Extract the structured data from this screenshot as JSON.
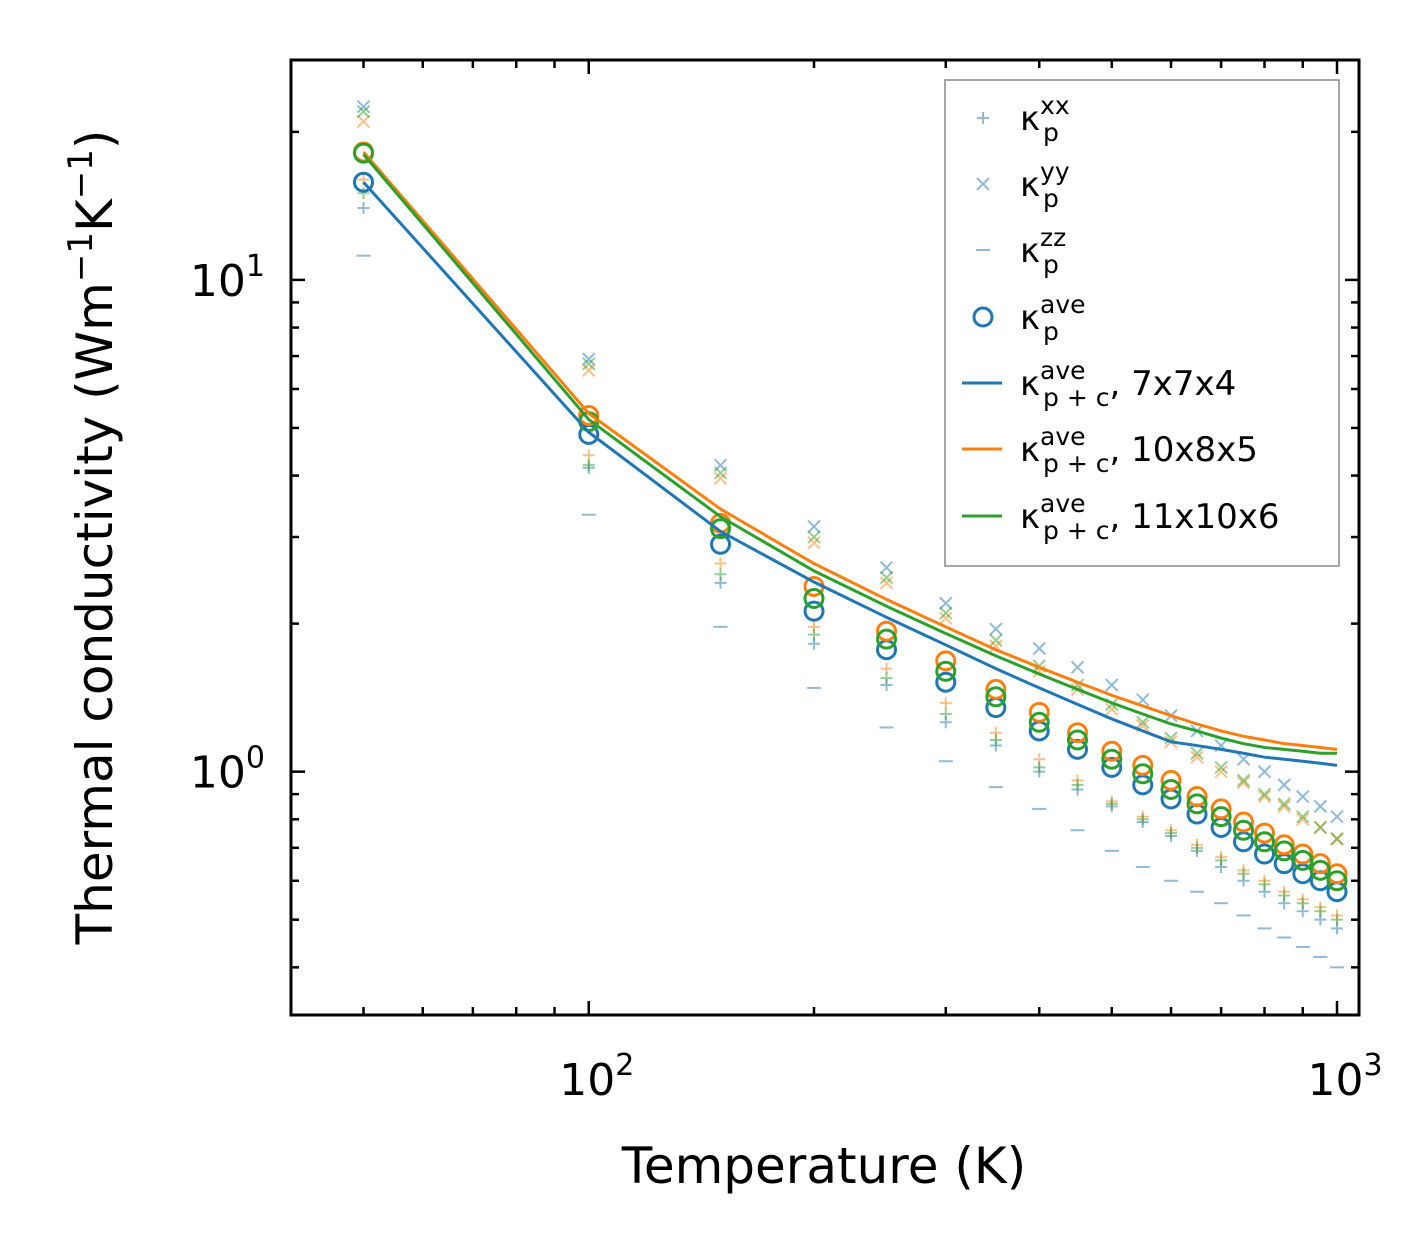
{
  "chart_data": {
    "type": "scatter+line",
    "scale": {
      "x": "log",
      "y": "log"
    },
    "xlabel": "Temperature (K)",
    "ylabel": {
      "prefix": "Thermal conductivity (Wm",
      "sup1": "−1",
      "mid": "K",
      "sup2": "−1",
      "suffix": ")"
    },
    "xlim": [
      40,
      1070
    ],
    "ylim": [
      0.32,
      28
    ],
    "x_ticks": [
      {
        "value": 100,
        "base": "10",
        "exp": "2"
      },
      {
        "value": 1000,
        "base": "10",
        "exp": "3"
      }
    ],
    "y_ticks": [
      {
        "value": 1,
        "base": "10",
        "exp": "0"
      },
      {
        "value": 10,
        "base": "10",
        "exp": "1"
      }
    ],
    "x": [
      50,
      100,
      150,
      200,
      250,
      300,
      350,
      400,
      450,
      500,
      550,
      600,
      650,
      700,
      750,
      800,
      850,
      900,
      950,
      1000
    ],
    "scatter_series": [
      {
        "name": "kappa_p_xx",
        "marker": "plus",
        "groups": [
          {
            "color": "#1f77b4",
            "values": [
              14.0,
              4.15,
              2.42,
              1.82,
              1.5,
              1.26,
              1.13,
              1.0,
              0.92,
              0.85,
              0.79,
              0.74,
              0.69,
              0.64,
              0.6,
              0.57,
              0.54,
              0.52,
              0.5,
              0.48
            ]
          },
          {
            "color": "#ff7f0e",
            "values": [
              16.0,
              4.4,
              2.65,
              1.97,
              1.62,
              1.38,
              1.2,
              1.06,
              0.96,
              0.87,
              0.81,
              0.76,
              0.71,
              0.67,
              0.63,
              0.6,
              0.57,
              0.55,
              0.53,
              0.51
            ]
          },
          {
            "color": "#2ca02c",
            "values": [
              15.0,
              4.2,
              2.52,
              1.9,
              1.55,
              1.31,
              1.16,
              1.02,
              0.94,
              0.86,
              0.8,
              0.75,
              0.7,
              0.66,
              0.62,
              0.59,
              0.56,
              0.54,
              0.52,
              0.5
            ]
          }
        ]
      },
      {
        "name": "kappa_p_yy",
        "marker": "cross",
        "groups": [
          {
            "color": "#1f77b4",
            "values": [
              22.5,
              6.9,
              4.2,
              3.15,
              2.6,
              2.2,
              1.95,
              1.78,
              1.63,
              1.5,
              1.4,
              1.3,
              1.21,
              1.13,
              1.06,
              1.0,
              0.94,
              0.89,
              0.85,
              0.81
            ]
          },
          {
            "color": "#ff7f0e",
            "values": [
              21.0,
              6.55,
              3.95,
              2.92,
              2.42,
              2.05,
              1.8,
              1.6,
              1.47,
              1.34,
              1.24,
              1.15,
              1.07,
              1.0,
              0.95,
              0.89,
              0.85,
              0.8,
              0.77,
              0.73
            ]
          },
          {
            "color": "#2ca02c",
            "values": [
              22.0,
              6.75,
              4.05,
              3.0,
              2.48,
              2.1,
              1.85,
              1.64,
              1.5,
              1.37,
              1.26,
              1.17,
              1.09,
              1.02,
              0.96,
              0.9,
              0.86,
              0.81,
              0.77,
              0.73
            ]
          }
        ]
      },
      {
        "name": "kappa_p_zz",
        "marker": "dash",
        "groups": [
          {
            "color": "#1f77b4",
            "values": [
              11.2,
              3.33,
              1.97,
              1.48,
              1.23,
              1.05,
              0.93,
              0.84,
              0.76,
              0.69,
              0.64,
              0.6,
              0.57,
              0.54,
              0.51,
              0.48,
              0.46,
              0.44,
              0.42,
              0.4
            ]
          }
        ]
      },
      {
        "name": "kappa_p_ave",
        "marker": "circle",
        "groups": [
          {
            "color": "#1f77b4",
            "values": [
              15.8,
              4.85,
              2.9,
              2.12,
              1.77,
              1.52,
              1.35,
              1.21,
              1.11,
              1.02,
              0.94,
              0.88,
              0.82,
              0.77,
              0.72,
              0.68,
              0.65,
              0.62,
              0.6,
              0.57
            ]
          },
          {
            "color": "#ff7f0e",
            "values": [
              18.2,
              5.3,
              3.2,
              2.38,
              1.93,
              1.68,
              1.47,
              1.32,
              1.2,
              1.1,
              1.03,
              0.96,
              0.89,
              0.84,
              0.79,
              0.75,
              0.71,
              0.68,
              0.65,
              0.62
            ]
          },
          {
            "color": "#2ca02c",
            "values": [
              18.1,
              5.15,
              3.12,
              2.25,
              1.86,
              1.6,
              1.42,
              1.26,
              1.16,
              1.06,
              0.99,
              0.92,
              0.86,
              0.81,
              0.76,
              0.72,
              0.69,
              0.66,
              0.63,
              0.6
            ]
          }
        ]
      }
    ],
    "line_series": [
      {
        "name": "kappa_p+c_ave 7x7x4",
        "color": "#1f77b4",
        "values": [
          15.8,
          4.9,
          3.08,
          2.43,
          2.06,
          1.81,
          1.62,
          1.48,
          1.37,
          1.28,
          1.21,
          1.15,
          1.13,
          1.11,
          1.09,
          1.07,
          1.06,
          1.05,
          1.04,
          1.03
        ]
      },
      {
        "name": "kappa_p+c_ave 10x8x5",
        "color": "#ff7f0e",
        "values": [
          18.2,
          5.35,
          3.42,
          2.65,
          2.24,
          1.97,
          1.77,
          1.63,
          1.52,
          1.43,
          1.36,
          1.3,
          1.25,
          1.21,
          1.18,
          1.16,
          1.14,
          1.13,
          1.12,
          1.11
        ]
      },
      {
        "name": "kappa_p+c_ave 11x10x6",
        "color": "#2ca02c",
        "values": [
          18.0,
          5.2,
          3.3,
          2.56,
          2.17,
          1.91,
          1.72,
          1.58,
          1.47,
          1.38,
          1.31,
          1.25,
          1.21,
          1.17,
          1.14,
          1.12,
          1.11,
          1.1,
          1.09,
          1.09
        ]
      }
    ],
    "legend": {
      "placement": "top-right",
      "entries": [
        {
          "marker": "plus",
          "color": "#1f77b4",
          "sup": "xx",
          "sub": "p",
          "suffix": ""
        },
        {
          "marker": "cross",
          "color": "#1f77b4",
          "sup": "yy",
          "sub": "p",
          "suffix": ""
        },
        {
          "marker": "dash",
          "color": "#1f77b4",
          "sup": "zz",
          "sub": "p",
          "suffix": ""
        },
        {
          "marker": "circle",
          "color": "#1f77b4",
          "sup": "ave",
          "sub": "p",
          "suffix": ""
        },
        {
          "marker": "line",
          "color": "#1f77b4",
          "sup": "ave",
          "sub": "p + c",
          "suffix": ", 7x7x4"
        },
        {
          "marker": "line",
          "color": "#ff7f0e",
          "sup": "ave",
          "sub": "p + c",
          "suffix": ", 10x8x5"
        },
        {
          "marker": "line",
          "color": "#2ca02c",
          "sup": "ave",
          "sub": "p + c",
          "suffix": ", 11x10x6"
        }
      ]
    }
  }
}
